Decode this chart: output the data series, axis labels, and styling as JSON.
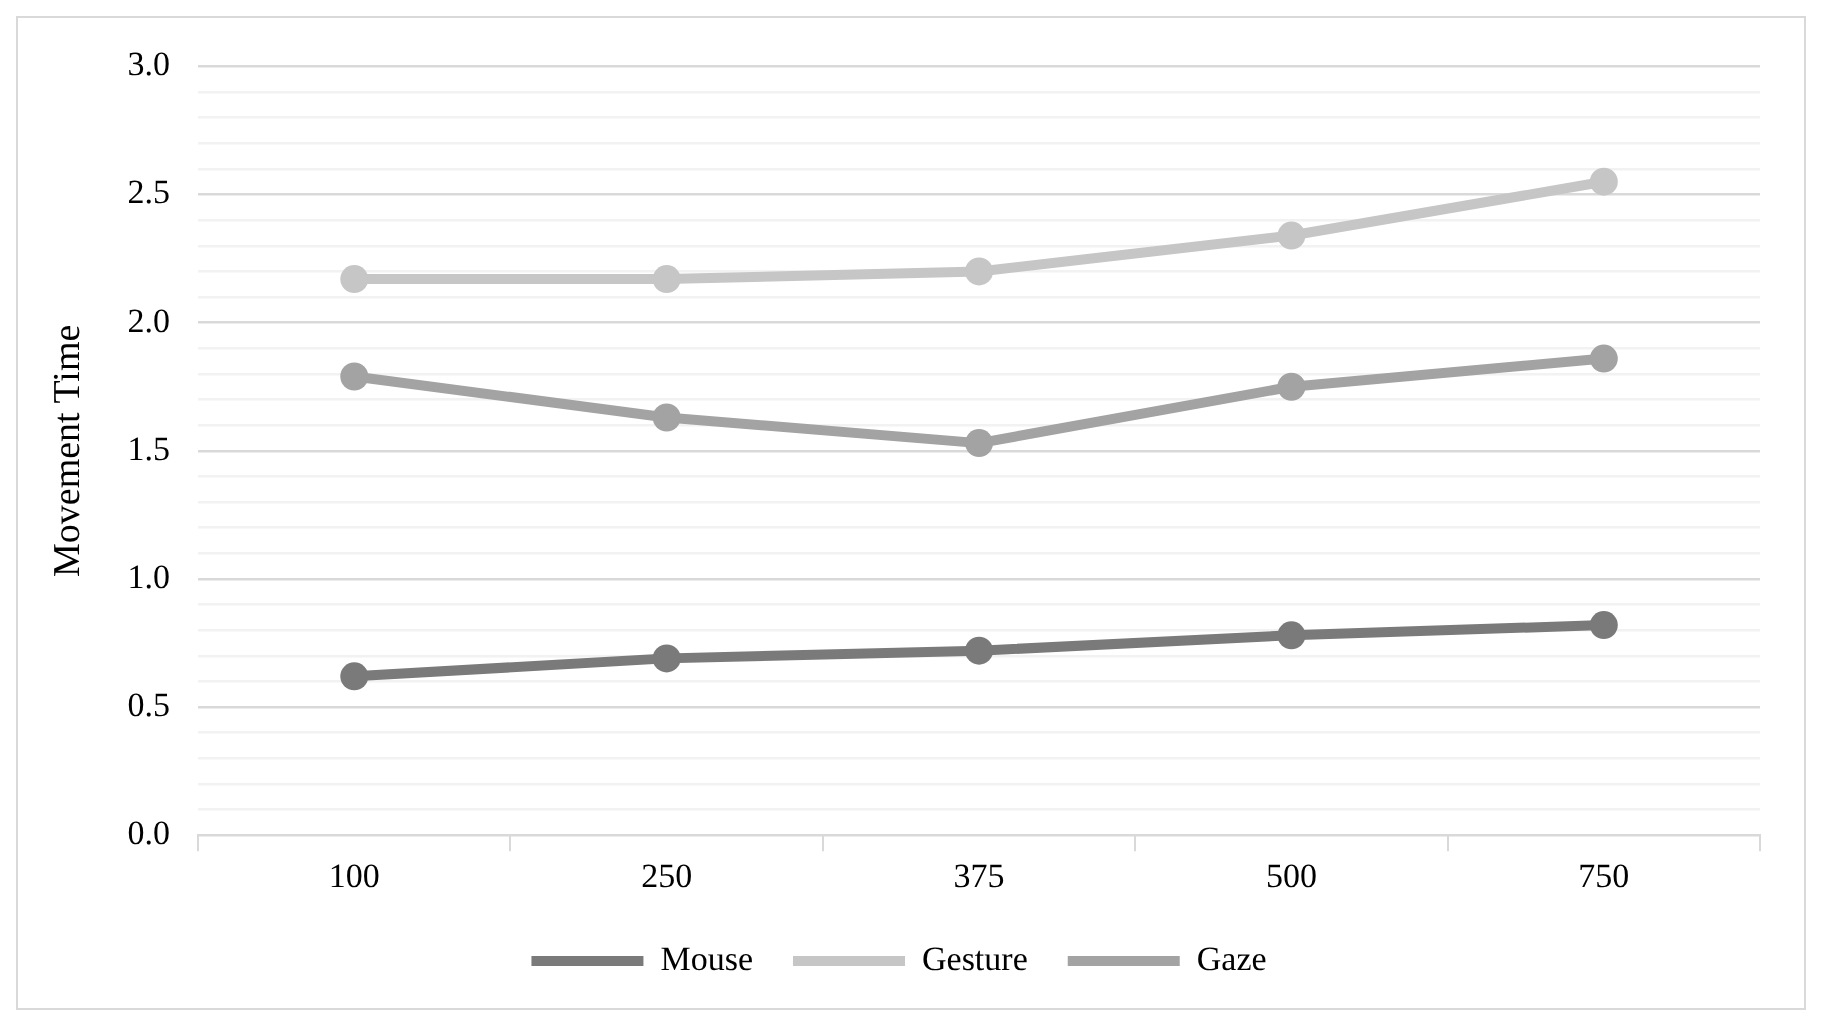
{
  "chart_data": {
    "type": "line",
    "ylabel": "Movement Time",
    "categories": [
      "100",
      "250",
      "375",
      "500",
      "750"
    ],
    "series": [
      {
        "name": "Mouse",
        "color": "#7a7a7a",
        "values": [
          0.62,
          0.69,
          0.72,
          0.78,
          0.82
        ]
      },
      {
        "name": "Gesture",
        "color": "#c6c6c6",
        "values": [
          2.17,
          2.17,
          2.2,
          2.34,
          2.55
        ]
      },
      {
        "name": "Gaze",
        "color": "#a3a3a3",
        "values": [
          1.79,
          1.63,
          1.53,
          1.75,
          1.86
        ]
      }
    ],
    "ylim": [
      0,
      3
    ],
    "yticks": [
      {
        "value": 0,
        "label": "0.0"
      },
      {
        "value": 0.1,
        "label": null
      },
      {
        "value": 0.2,
        "label": null
      },
      {
        "value": 0.3,
        "label": null
      },
      {
        "value": 0.4,
        "label": null
      },
      {
        "value": 0.5,
        "label": "0.5"
      },
      {
        "value": 0.6,
        "label": null
      },
      {
        "value": 0.7,
        "label": null
      },
      {
        "value": 0.8,
        "label": null
      },
      {
        "value": 0.9,
        "label": null
      },
      {
        "value": 1,
        "label": "1.0"
      },
      {
        "value": 1.1,
        "label": null
      },
      {
        "value": 1.2,
        "label": null
      },
      {
        "value": 1.3,
        "label": null
      },
      {
        "value": 1.4,
        "label": null
      },
      {
        "value": 1.5,
        "label": "1.5"
      },
      {
        "value": 1.6,
        "label": null
      },
      {
        "value": 1.7,
        "label": null
      },
      {
        "value": 1.8,
        "label": null
      },
      {
        "value": 1.9,
        "label": null
      },
      {
        "value": 2,
        "label": "2.0"
      },
      {
        "value": 2.1,
        "label": null
      },
      {
        "value": 2.2,
        "label": null
      },
      {
        "value": 2.3,
        "label": null
      },
      {
        "value": 2.4,
        "label": null
      },
      {
        "value": 2.5,
        "label": "2.5"
      },
      {
        "value": 2.6,
        "label": null
      },
      {
        "value": 2.7,
        "label": null
      },
      {
        "value": 2.8,
        "label": null
      },
      {
        "value": 2.9,
        "label": null
      },
      {
        "value": 3,
        "label": "3.0"
      }
    ],
    "grid": "y",
    "legend": "bottom",
    "marker": "circle",
    "line_style": "solid"
  }
}
